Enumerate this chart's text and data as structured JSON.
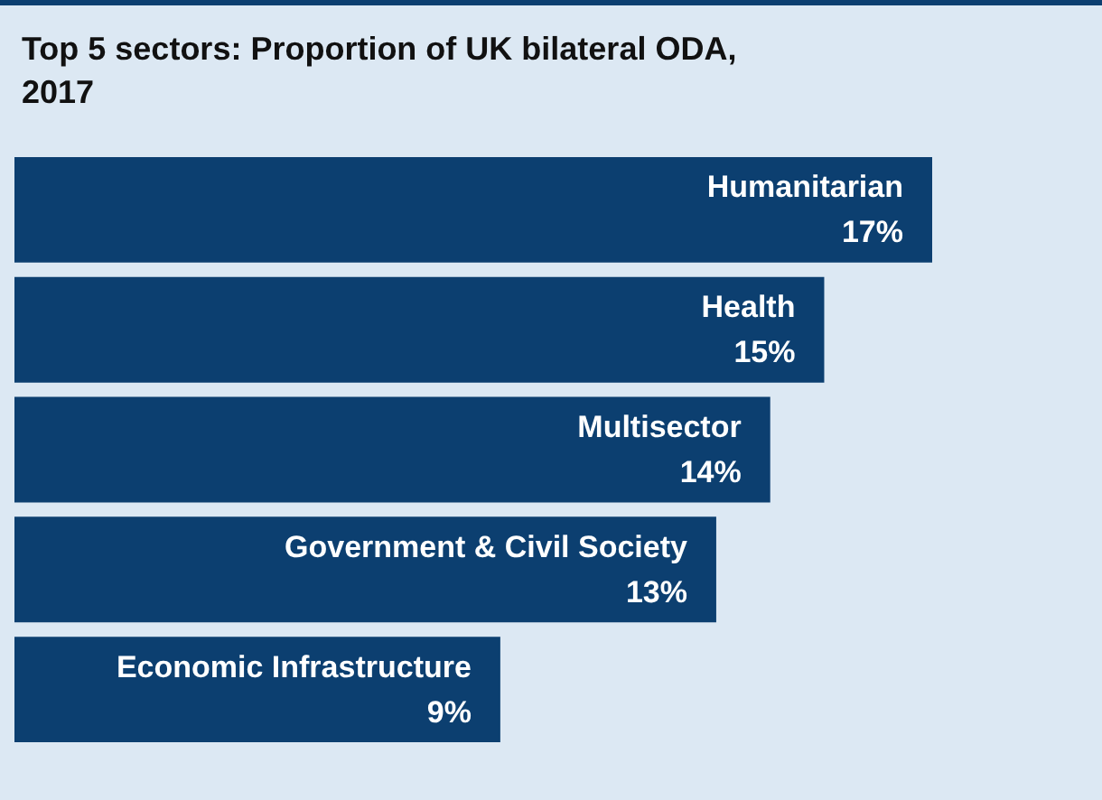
{
  "chart_data": {
    "type": "bar",
    "orientation": "horizontal",
    "title": "Top 5 sectors: Proportion of UK bilateral ODA, 2017",
    "categories": [
      "Humanitarian",
      "Health",
      "Multisector",
      "Government & Civil Society",
      "Economic Infrastructure"
    ],
    "values": [
      17,
      15,
      14,
      13,
      9
    ],
    "value_labels": [
      "17%",
      "15%",
      "14%",
      "13%",
      "9%"
    ],
    "color": "#0c3f70"
  }
}
